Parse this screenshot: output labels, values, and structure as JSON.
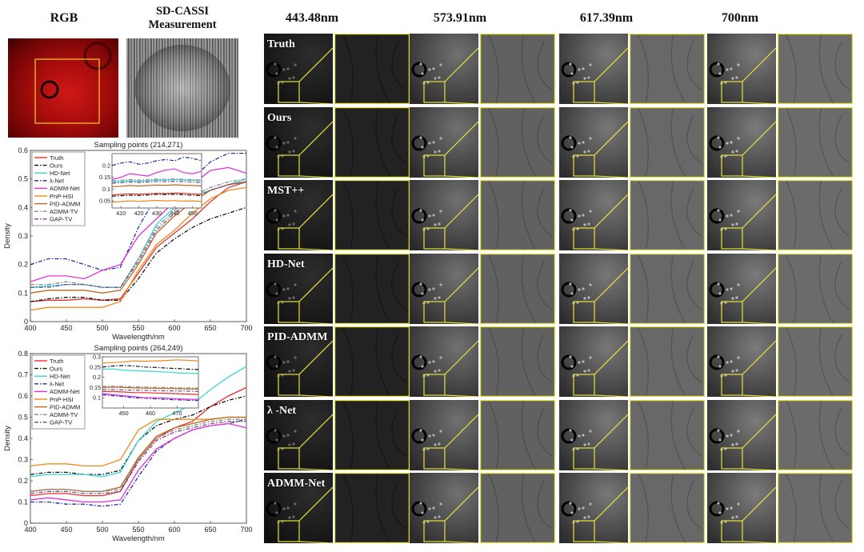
{
  "headers": {
    "rgb": "RGB",
    "measurement_line1": "SD-CASSI",
    "measurement_line2": "Measurement",
    "wavelengths": [
      "443.48nm",
      "573.91nm",
      "617.39nm",
      "700nm"
    ]
  },
  "methods": [
    "Truth",
    "Ours",
    "MST++",
    "HD-Net",
    "PID-ADMM",
    "λ -Net",
    "ADMM-Net"
  ],
  "colors": {
    "zoom_box": "#e6e23a",
    "rgb_box": "#f2d21a"
  },
  "chart_data": [
    {
      "type": "line",
      "title": "Sampling points (214,271)",
      "xlabel": "Wavelength/nm",
      "ylabel": "Density",
      "xlim": [
        400,
        700
      ],
      "ylim": [
        0,
        0.6
      ],
      "xticks": [
        "400",
        "450",
        "500",
        "550",
        "600",
        "650",
        "700"
      ],
      "yticks": [
        "0",
        "0.1",
        "0.2",
        "0.3",
        "0.4",
        "0.5",
        "0.6"
      ],
      "legend_position": "top-left",
      "x": [
        400,
        425,
        450,
        475,
        500,
        525,
        550,
        575,
        600,
        625,
        650,
        675,
        700
      ],
      "series": [
        {
          "name": "Truth",
          "color": "#e8302a",
          "dash": "solid",
          "values": [
            0.07,
            0.075,
            0.075,
            0.08,
            0.075,
            0.08,
            0.17,
            0.26,
            0.31,
            0.36,
            0.42,
            0.47,
            0.49
          ]
        },
        {
          "name": "Ours",
          "color": "#111111",
          "dash": "dashdot",
          "values": [
            0.07,
            0.08,
            0.085,
            0.085,
            0.075,
            0.075,
            0.15,
            0.24,
            0.29,
            0.33,
            0.36,
            0.38,
            0.4
          ]
        },
        {
          "name": "HD-Net",
          "color": "#38d6d6",
          "dash": "solid",
          "values": [
            0.12,
            0.125,
            0.13,
            0.13,
            0.12,
            0.12,
            0.22,
            0.34,
            0.4,
            0.44,
            0.46,
            0.48,
            0.5
          ]
        },
        {
          "name": "λ-Net",
          "color": "#1f2fa0",
          "dash": "dashdot",
          "values": [
            0.2,
            0.22,
            0.22,
            0.2,
            0.18,
            0.19,
            0.33,
            0.44,
            0.48,
            0.5,
            0.56,
            0.59,
            0.59
          ]
        },
        {
          "name": "ADMM-Net",
          "color": "#e030d8",
          "dash": "solid",
          "values": [
            0.14,
            0.16,
            0.16,
            0.15,
            0.18,
            0.2,
            0.3,
            0.36,
            0.42,
            0.48,
            0.53,
            0.54,
            0.52
          ]
        },
        {
          "name": "PnP-HSI",
          "color": "#f08a1c",
          "dash": "solid",
          "values": [
            0.04,
            0.05,
            0.05,
            0.05,
            0.05,
            0.07,
            0.18,
            0.27,
            0.32,
            0.38,
            0.43,
            0.46,
            0.47
          ]
        },
        {
          "name": "PID-ADMM",
          "color": "#b56a20",
          "dash": "solid",
          "values": [
            0.1,
            0.11,
            0.11,
            0.11,
            0.1,
            0.11,
            0.2,
            0.31,
            0.37,
            0.42,
            0.46,
            0.48,
            0.49
          ]
        },
        {
          "name": "ADMM-TV",
          "color": "#888888",
          "dash": "dashdot",
          "values": [
            0.13,
            0.13,
            0.14,
            0.13,
            0.12,
            0.12,
            0.22,
            0.33,
            0.39,
            0.44,
            0.47,
            0.49,
            0.5
          ]
        },
        {
          "name": "GAP-TV",
          "color": "#7a4a8a",
          "dash": "dashdot",
          "values": [
            0.12,
            0.12,
            0.13,
            0.13,
            0.12,
            0.12,
            0.21,
            0.32,
            0.38,
            0.43,
            0.46,
            0.48,
            0.49
          ]
        }
      ],
      "inset": {
        "xlim": [
          405,
          455
        ],
        "ylim": [
          0.02,
          0.25
        ],
        "xticks": [
          "410",
          "420",
          "430",
          "440",
          "450"
        ],
        "yticks": [
          "0.05",
          "0.1",
          "0.15",
          "0.2"
        ],
        "x": [
          405,
          410,
          415,
          420,
          425,
          430,
          435,
          440,
          445,
          450,
          455
        ],
        "series": [
          {
            "name": "Truth",
            "values": [
              0.075,
              0.078,
              0.08,
              0.079,
              0.08,
              0.082,
              0.081,
              0.083,
              0.082,
              0.08,
              0.078
            ]
          },
          {
            "name": "Ours",
            "values": [
              0.07,
              0.072,
              0.074,
              0.073,
              0.075,
              0.078,
              0.077,
              0.078,
              0.076,
              0.074,
              0.072
            ]
          },
          {
            "name": "HD-Net",
            "values": [
              0.13,
              0.132,
              0.135,
              0.133,
              0.135,
              0.138,
              0.137,
              0.14,
              0.138,
              0.137,
              0.135
            ]
          },
          {
            "name": "λ-Net",
            "values": [
              0.2,
              0.21,
              0.215,
              0.205,
              0.21,
              0.22,
              0.225,
              0.22,
              0.235,
              0.23,
              0.22
            ]
          },
          {
            "name": "ADMM-Net",
            "values": [
              0.14,
              0.15,
              0.165,
              0.16,
              0.155,
              0.17,
              0.18,
              0.185,
              0.17,
              0.165,
              0.175
            ]
          },
          {
            "name": "PnP-HSI",
            "values": [
              0.045,
              0.047,
              0.05,
              0.048,
              0.05,
              0.052,
              0.05,
              0.051,
              0.049,
              0.05,
              0.048
            ]
          },
          {
            "name": "PID-ADMM",
            "values": [
              0.11,
              0.112,
              0.115,
              0.113,
              0.115,
              0.117,
              0.116,
              0.118,
              0.116,
              0.115,
              0.113
            ]
          },
          {
            "name": "ADMM-TV",
            "values": [
              0.135,
              0.137,
              0.14,
              0.138,
              0.14,
              0.142,
              0.141,
              0.143,
              0.141,
              0.14,
              0.138
            ]
          },
          {
            "name": "GAP-TV",
            "values": [
              0.125,
              0.127,
              0.13,
              0.128,
              0.13,
              0.132,
              0.131,
              0.133,
              0.131,
              0.13,
              0.128
            ]
          }
        ]
      }
    },
    {
      "type": "line",
      "title": "Sampling points (264,249)",
      "xlabel": "Wavelength/nm",
      "ylabel": "Density",
      "xlim": [
        400,
        700
      ],
      "ylim": [
        0,
        0.8
      ],
      "xticks": [
        "400",
        "450",
        "500",
        "550",
        "600",
        "650",
        "700"
      ],
      "yticks": [
        "0",
        "0.1",
        "0.2",
        "0.3",
        "0.4",
        "0.5",
        "0.6",
        "0.7",
        "0.8"
      ],
      "legend_position": "top-left",
      "x": [
        400,
        425,
        450,
        475,
        500,
        525,
        550,
        575,
        600,
        625,
        650,
        675,
        700
      ],
      "series": [
        {
          "name": "Truth",
          "color": "#e8302a",
          "dash": "solid",
          "values": [
            0.13,
            0.14,
            0.14,
            0.13,
            0.13,
            0.15,
            0.3,
            0.4,
            0.45,
            0.48,
            0.55,
            0.6,
            0.64
          ]
        },
        {
          "name": "Ours",
          "color": "#111111",
          "dash": "dashdot",
          "values": [
            0.23,
            0.24,
            0.24,
            0.23,
            0.23,
            0.25,
            0.39,
            0.46,
            0.49,
            0.51,
            0.55,
            0.58,
            0.6
          ]
        },
        {
          "name": "HD-Net",
          "color": "#38d6d6",
          "dash": "solid",
          "values": [
            0.22,
            0.23,
            0.23,
            0.23,
            0.22,
            0.24,
            0.39,
            0.48,
            0.52,
            0.56,
            0.63,
            0.69,
            0.74
          ]
        },
        {
          "name": "λ-Net",
          "color": "#1f2fa0",
          "dash": "dashdot",
          "values": [
            0.1,
            0.1,
            0.09,
            0.09,
            0.08,
            0.09,
            0.22,
            0.34,
            0.4,
            0.44,
            0.46,
            0.47,
            0.49
          ]
        },
        {
          "name": "ADMM-Net",
          "color": "#e030d8",
          "dash": "solid",
          "values": [
            0.11,
            0.12,
            0.11,
            0.1,
            0.1,
            0.11,
            0.25,
            0.35,
            0.4,
            0.44,
            0.46,
            0.47,
            0.45
          ]
        },
        {
          "name": "PnP-HSI",
          "color": "#f08a1c",
          "dash": "solid",
          "values": [
            0.27,
            0.28,
            0.28,
            0.27,
            0.27,
            0.3,
            0.44,
            0.49,
            0.49,
            0.49,
            0.49,
            0.5,
            0.5
          ]
        },
        {
          "name": "PID-ADMM",
          "color": "#b56a20",
          "dash": "solid",
          "values": [
            0.15,
            0.16,
            0.16,
            0.15,
            0.15,
            0.17,
            0.31,
            0.41,
            0.45,
            0.47,
            0.49,
            0.5,
            0.5
          ]
        },
        {
          "name": "ADMM-TV",
          "color": "#888888",
          "dash": "dashdot",
          "values": [
            0.15,
            0.16,
            0.16,
            0.15,
            0.15,
            0.16,
            0.3,
            0.4,
            0.44,
            0.46,
            0.48,
            0.49,
            0.49
          ]
        },
        {
          "name": "GAP-TV",
          "color": "#7a4a8a",
          "dash": "dashdot",
          "values": [
            0.14,
            0.15,
            0.15,
            0.14,
            0.14,
            0.15,
            0.29,
            0.39,
            0.43,
            0.45,
            0.47,
            0.48,
            0.48
          ]
        }
      ],
      "inset": {
        "xlim": [
          442,
          478
        ],
        "ylim": [
          0.05,
          0.3
        ],
        "xticks": [
          "450",
          "460",
          "470"
        ],
        "yticks": [
          "0.1",
          "0.15",
          "0.2",
          "0.25",
          "0.3"
        ],
        "x": [
          442,
          446,
          450,
          454,
          458,
          462,
          466,
          470,
          474,
          478
        ],
        "series": [
          {
            "name": "Truth",
            "values": [
              0.13,
              0.13,
              0.128,
              0.125,
              0.125,
              0.123,
              0.122,
              0.12,
              0.118,
              0.116
            ]
          },
          {
            "name": "Ours",
            "values": [
              0.25,
              0.255,
              0.258,
              0.255,
              0.25,
              0.248,
              0.245,
              0.243,
              0.24,
              0.238
            ]
          },
          {
            "name": "HD-Net",
            "values": [
              0.24,
              0.24,
              0.235,
              0.232,
              0.23,
              0.228,
              0.225,
              0.222,
              0.22,
              0.218
            ]
          },
          {
            "name": "λ-Net",
            "values": [
              0.115,
              0.11,
              0.105,
              0.1,
              0.098,
              0.095,
              0.092,
              0.09,
              0.088,
              0.087
            ]
          },
          {
            "name": "ADMM-Net",
            "values": [
              0.12,
              0.115,
              0.11,
              0.105,
              0.1,
              0.1,
              0.098,
              0.095,
              0.093,
              0.092
            ]
          },
          {
            "name": "PnP-HSI",
            "values": [
              0.27,
              0.272,
              0.275,
              0.28,
              0.278,
              0.28,
              0.282,
              0.285,
              0.283,
              0.28
            ]
          },
          {
            "name": "PID-ADMM",
            "values": [
              0.15,
              0.152,
              0.15,
              0.148,
              0.147,
              0.146,
              0.145,
              0.144,
              0.143,
              0.142
            ]
          },
          {
            "name": "ADMM-TV",
            "values": [
              0.155,
              0.156,
              0.155,
              0.153,
              0.152,
              0.151,
              0.15,
              0.149,
              0.148,
              0.147
            ]
          },
          {
            "name": "GAP-TV",
            "values": [
              0.14,
              0.14,
              0.138,
              0.137,
              0.136,
              0.135,
              0.134,
              0.133,
              0.132,
              0.131
            ]
          }
        ]
      }
    }
  ]
}
